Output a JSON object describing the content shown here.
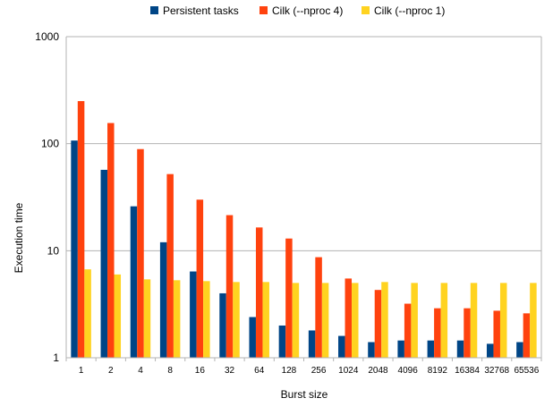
{
  "chart_data": {
    "type": "bar",
    "title": "",
    "xlabel": "Burst size",
    "ylabel": "Execution time",
    "yscale": "log",
    "ylim": [
      1,
      1000
    ],
    "yticks": [
      "1",
      "10",
      "100",
      "1000"
    ],
    "grid": true,
    "legend_position": "top",
    "categories": [
      "1",
      "2",
      "4",
      "8",
      "16",
      "32",
      "64",
      "128",
      "256",
      "1024",
      "2048",
      "4096",
      "8192",
      "16384",
      "32768",
      "65536"
    ],
    "series": [
      {
        "name": "Persistent tasks",
        "color": "#004586",
        "values": [
          107,
          57,
          26,
          12,
          6.4,
          4.0,
          2.4,
          2.0,
          1.8,
          1.6,
          1.4,
          1.45,
          1.45,
          1.45,
          1.35,
          1.4
        ]
      },
      {
        "name": "Cilk (--nproc 4)",
        "color": "#ff420e",
        "values": [
          250,
          156,
          89,
          52,
          30,
          21.5,
          16.5,
          13,
          8.7,
          5.5,
          4.3,
          3.2,
          2.9,
          2.9,
          2.75,
          2.6
        ]
      },
      {
        "name": "Cilk (--nproc 1)",
        "color": "#ffd320",
        "values": [
          6.7,
          6.0,
          5.4,
          5.3,
          5.2,
          5.1,
          5.1,
          5.0,
          5.0,
          5.0,
          5.1,
          5.0,
          5.0,
          5.0,
          5.0,
          5.0
        ]
      }
    ]
  }
}
